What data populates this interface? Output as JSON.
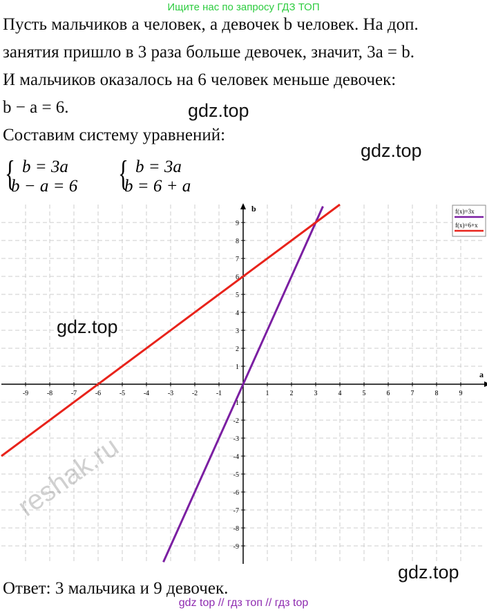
{
  "header": "Ищите нас по запросу ГДЗ ТОП",
  "lines": [
    "Пусть мальчиков a человек, а девочек b человек. На доп.",
    "занятия пришло в 3 раза больше девочек, значит, 3a = b.",
    "И мальчиков оказалось на 6 человек меньше девочек:",
    "b − a = 6.",
    "Составим систему уравнений:"
  ],
  "systems": [
    [
      "b = 3a",
      "b − a = 6"
    ],
    [
      "b = 3a",
      "b = 6 + a"
    ]
  ],
  "graph": {
    "xlabel": "a",
    "ylabel": "b",
    "xlim": [
      -10,
      10
    ],
    "ylim": [
      -10,
      10
    ],
    "xticks": [
      -9,
      -8,
      -7,
      -6,
      -5,
      -4,
      -3,
      -2,
      -1,
      1,
      2,
      3,
      4,
      5,
      6,
      7,
      8,
      9
    ],
    "yticks": [
      -9,
      -8,
      -7,
      -6,
      -5,
      -4,
      -3,
      -2,
      -1,
      1,
      2,
      3,
      4,
      5,
      6,
      7,
      8,
      9
    ],
    "grid": true,
    "series": [
      {
        "name": "f(x)=3x",
        "color": "#7b1fa2",
        "x": [
          -3.3,
          3.3
        ],
        "y": [
          -9.9,
          9.9
        ]
      },
      {
        "name": "f(x)=6+x",
        "color": "#e8231b",
        "x": [
          -10,
          4
        ],
        "y": [
          -4,
          10
        ]
      }
    ]
  },
  "answer": "Ответ: 3 мальчика и 9 девочек.",
  "footer": "gdz top  //  гдз топ  //  гдз top",
  "watermarks": [
    "gdz.top",
    "gdz.top",
    "gdz.top",
    "gdz.top",
    "reshak.ru"
  ]
}
